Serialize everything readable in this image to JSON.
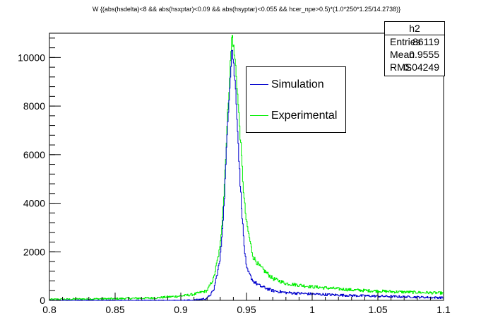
{
  "title": "W {(abs(hsdelta)<8 && abs(hsxptar)<0.09 && abs(hsyptar)<0.055 && hcer_npe>0.5)*(1.0*250*1.25/14.2738)}",
  "stats": {
    "name": "h2",
    "rows": [
      {
        "label": "Entries",
        "value": "86119"
      },
      {
        "label": "Mean",
        "value": "0.9555"
      },
      {
        "label": "RMS",
        "value": "0.04249"
      }
    ]
  },
  "colors": {
    "simulation": "#0000cc",
    "experimental": "#00ee00",
    "axis": "#000000"
  },
  "chart_data": {
    "type": "line",
    "title": "W {(abs(hsdelta)<8 && abs(hsxptar)<0.09 && abs(hsyptar)<0.055 && hcer_npe>0.5)*(1.0*250*1.25/14.2738)}",
    "xlabel": "",
    "ylabel": "",
    "xlim": [
      0.8,
      1.1
    ],
    "ylim": [
      0,
      11000
    ],
    "x_ticks": [
      "0.8",
      "0.85",
      "0.9",
      "0.95",
      "1",
      "1.05",
      "1.1"
    ],
    "y_ticks": [
      "0",
      "2000",
      "4000",
      "6000",
      "8000",
      "10000"
    ],
    "legend_position": "top-right",
    "grid": false,
    "x": [
      0.8,
      0.85,
      0.88,
      0.9,
      0.91,
      0.92,
      0.925,
      0.93,
      0.933,
      0.936,
      0.939,
      0.942,
      0.945,
      0.948,
      0.95,
      0.955,
      0.96,
      0.97,
      0.98,
      1.0,
      1.03,
      1.06,
      1.1
    ],
    "series": [
      {
        "name": "Simulation",
        "values": [
          0,
          0,
          0,
          0,
          10,
          80,
          400,
          1700,
          4000,
          7700,
          10500,
          8500,
          5000,
          2400,
          1300,
          800,
          600,
          400,
          320,
          260,
          200,
          160,
          110
        ]
      },
      {
        "name": "Experimental",
        "values": [
          40,
          70,
          100,
          180,
          250,
          400,
          900,
          2200,
          4500,
          8000,
          11000,
          9500,
          7000,
          4300,
          3200,
          1800,
          1400,
          900,
          700,
          560,
          430,
          360,
          300
        ]
      }
    ]
  }
}
